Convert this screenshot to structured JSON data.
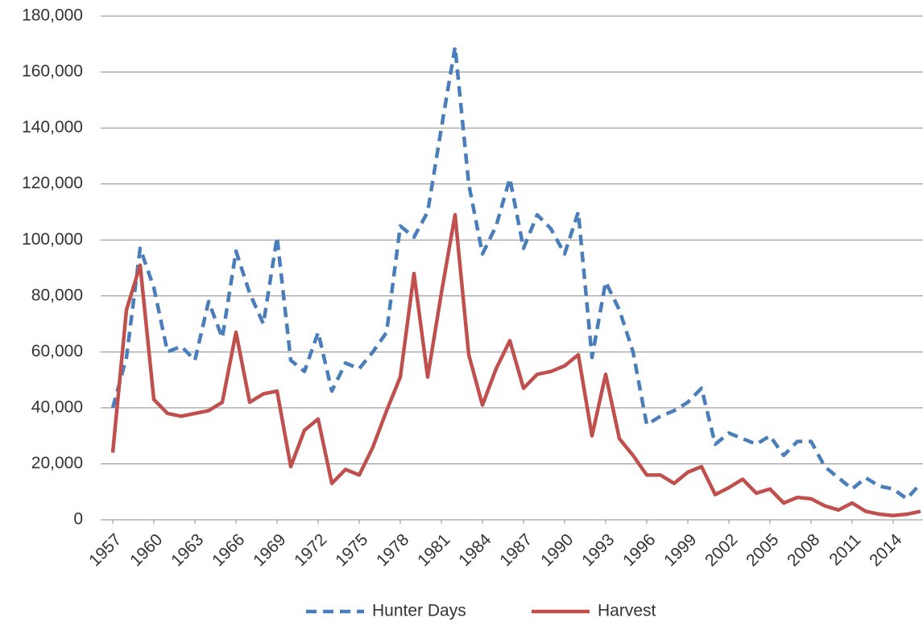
{
  "chart_data": {
    "type": "line",
    "x": [
      1957,
      1958,
      1959,
      1960,
      1961,
      1962,
      1963,
      1964,
      1965,
      1966,
      1967,
      1968,
      1969,
      1970,
      1971,
      1972,
      1973,
      1974,
      1975,
      1976,
      1977,
      1978,
      1979,
      1980,
      1981,
      1982,
      1983,
      1984,
      1985,
      1986,
      1987,
      1988,
      1989,
      1990,
      1991,
      1992,
      1993,
      1994,
      1995,
      1996,
      1997,
      1998,
      1999,
      2000,
      2001,
      2002,
      2003,
      2004,
      2005,
      2006,
      2007,
      2008,
      2009,
      2010,
      2011,
      2012,
      2013,
      2014,
      2015,
      2016
    ],
    "series": [
      {
        "name": "Hunter Days",
        "color": "#4a7ebb",
        "dashed": true,
        "values": [
          40000,
          58000,
          97000,
          83000,
          60000,
          62000,
          57000,
          78000,
          65000,
          96000,
          81000,
          70000,
          101000,
          57000,
          53000,
          67000,
          46000,
          56000,
          54000,
          60000,
          67000,
          105000,
          101000,
          110000,
          140000,
          169000,
          120000,
          95000,
          105000,
          122000,
          97000,
          109000,
          104000,
          95000,
          110000,
          58000,
          85000,
          75000,
          60000,
          34000,
          37000,
          39000,
          42000,
          47000,
          27000,
          31000,
          29000,
          27000,
          30000,
          23000,
          28000,
          28000,
          19000,
          15000,
          11000,
          15000,
          12000,
          11000,
          7500,
          13000
        ]
      },
      {
        "name": "Harvest",
        "color": "#c0504d",
        "dashed": false,
        "values": [
          24000,
          75000,
          91000,
          43000,
          38000,
          37000,
          38000,
          39000,
          42000,
          67000,
          42000,
          45000,
          46000,
          19000,
          32000,
          36000,
          13000,
          18000,
          16000,
          26000,
          39000,
          51000,
          88000,
          51000,
          81000,
          109000,
          59000,
          41000,
          54000,
          64000,
          47000,
          52000,
          53000,
          55000,
          59000,
          30000,
          52000,
          29000,
          23000,
          16000,
          16000,
          13000,
          17000,
          19000,
          9000,
          11500,
          14500,
          9500,
          11000,
          6000,
          8000,
          7500,
          5000,
          3500,
          6000,
          3000,
          2000,
          1500,
          2000,
          3000
        ]
      }
    ],
    "xlim": [
      1957,
      2016
    ],
    "xticks": [
      1957,
      1960,
      1963,
      1966,
      1969,
      1972,
      1975,
      1978,
      1981,
      1984,
      1987,
      1990,
      1993,
      1996,
      1999,
      2002,
      2005,
      2008,
      2011,
      2014
    ],
    "ylim": [
      0,
      180000
    ],
    "yticks": [
      0,
      {
        "value": 20000,
        "label": "20,000"
      },
      {
        "value": 40000,
        "label": "40,000"
      },
      {
        "value": 60000,
        "label": "60,000"
      },
      {
        "value": 80000,
        "label": "80,000"
      },
      {
        "value": 100000,
        "label": "100,000"
      },
      {
        "value": 120000,
        "label": "120,000"
      },
      {
        "value": 140000,
        "label": "140,000"
      },
      {
        "value": 160000,
        "label": "160,000"
      },
      {
        "value": 180000,
        "label": "180,000"
      }
    ],
    "grid": true,
    "legend": "bottom"
  }
}
